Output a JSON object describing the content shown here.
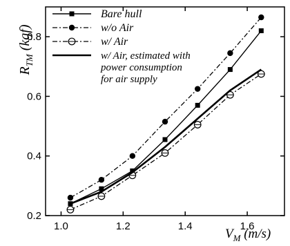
{
  "chart_data": {
    "type": "line",
    "xlabel": "V_M (m/s)",
    "ylabel": "R_TM (kgf)",
    "xlim": [
      0.95,
      1.72
    ],
    "ylim": [
      0.2,
      0.9
    ],
    "xticks": [
      "1.0",
      "1.2",
      "1.4",
      "1.6"
    ],
    "yticks": [
      "0.2",
      "0.4",
      "0.6",
      "0.8"
    ],
    "grid": false,
    "legend": "top-left",
    "series": [
      {
        "name": "Bare hull",
        "style": "solid",
        "marker": "square",
        "x": [
          1.03,
          1.13,
          1.23,
          1.335,
          1.44,
          1.545,
          1.645
        ],
        "y": [
          0.24,
          0.29,
          0.35,
          0.455,
          0.57,
          0.69,
          0.82
        ]
      },
      {
        "name": "w/o Air",
        "style": "dashdot",
        "marker": "filled-circle",
        "x": [
          1.03,
          1.13,
          1.23,
          1.335,
          1.44,
          1.545,
          1.645
        ],
        "y": [
          0.26,
          0.32,
          0.4,
          0.515,
          0.625,
          0.745,
          0.865
        ]
      },
      {
        "name": "w/ Air",
        "style": "dashdot",
        "marker": "open-circle",
        "x": [
          1.03,
          1.13,
          1.23,
          1.335,
          1.44,
          1.545,
          1.645
        ],
        "y": [
          0.22,
          0.265,
          0.335,
          0.41,
          0.505,
          0.605,
          0.675
        ]
      },
      {
        "name": "w/ Air, estimated with power consumption for air supply",
        "style": "solid-thick",
        "marker": "none",
        "x": [
          1.03,
          1.13,
          1.23,
          1.335,
          1.44,
          1.545,
          1.645
        ],
        "y": [
          0.24,
          0.28,
          0.345,
          0.43,
          0.525,
          0.62,
          0.69
        ]
      }
    ]
  }
}
